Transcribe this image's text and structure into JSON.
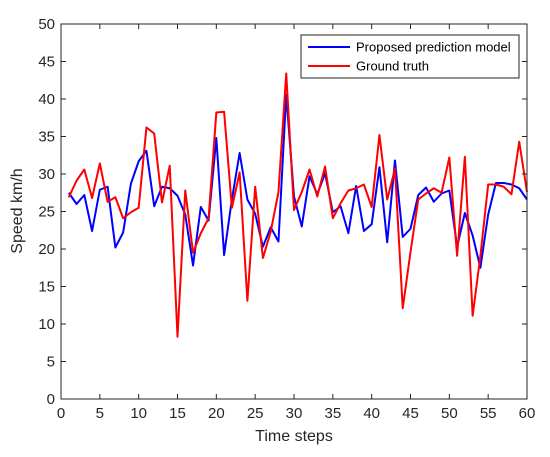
{
  "chart_data": {
    "type": "line",
    "title": "",
    "xlabel": "Time steps",
    "ylabel": "Speed km/h",
    "xlim": [
      0,
      60
    ],
    "ylim": [
      0,
      50
    ],
    "xticks": [
      0,
      5,
      10,
      15,
      20,
      25,
      30,
      35,
      40,
      45,
      50,
      55,
      60
    ],
    "yticks": [
      0,
      5,
      10,
      15,
      20,
      25,
      30,
      35,
      40,
      45,
      50
    ],
    "grid": false,
    "legend_position": "top-right",
    "x": [
      1,
      2,
      3,
      4,
      5,
      6,
      7,
      8,
      9,
      10,
      11,
      12,
      13,
      14,
      15,
      16,
      17,
      18,
      19,
      20,
      21,
      22,
      23,
      24,
      25,
      26,
      27,
      28,
      29,
      30,
      31,
      32,
      33,
      34,
      35,
      36,
      37,
      38,
      39,
      40,
      41,
      42,
      43,
      44,
      45,
      46,
      47,
      48,
      49,
      50,
      51,
      52,
      53,
      54,
      55,
      56,
      57,
      58,
      59,
      60
    ],
    "series": [
      {
        "name": "Proposed prediction model",
        "color": "#0000ff",
        "values": [
          27.5,
          26,
          27.2,
          22.4,
          27.9,
          28.3,
          20.2,
          22.2,
          28.7,
          31.7,
          33.1,
          25.7,
          28.3,
          28.1,
          27.1,
          24.6,
          17.8,
          25.6,
          23.8,
          34.8,
          19.2,
          26.6,
          32.8,
          26.6,
          24.7,
          20.3,
          22.9,
          21.0,
          40.6,
          27.0,
          23.0,
          29.7,
          27.3,
          30.1,
          24.9,
          25.7,
          22.1,
          28.4,
          22.4,
          23.3,
          30.9,
          20.9,
          31.8,
          21.6,
          22.7,
          27.2,
          28.2,
          26.3,
          27.4,
          27.8,
          20.3,
          24.8,
          21.8,
          17.5,
          24.6,
          28.8,
          28.8,
          28.6,
          28.1,
          26.6
        ]
      },
      {
        "name": "Ground truth",
        "color": "#ff0000",
        "values": [
          26.9,
          29.1,
          30.6,
          26.8,
          31.4,
          26.3,
          26.9,
          24.1,
          24.9,
          25.5,
          36.2,
          35.4,
          26.2,
          31.1,
          8.3,
          27.8,
          19.5,
          22.1,
          24.1,
          38.2,
          38.3,
          25.5,
          30.2,
          13.1,
          28.3,
          18.8,
          22.3,
          27.6,
          43.4,
          25.2,
          27.6,
          30.6,
          27.0,
          31.0,
          24.1,
          26.1,
          27.8,
          28.1,
          28.6,
          25.6,
          35.2,
          26.6,
          30.7,
          12.1,
          19.6,
          26.6,
          27.4,
          28.1,
          27.5,
          32.2,
          19.1,
          32.3,
          11.1,
          19.1,
          28.6,
          28.6,
          28.3,
          27.3,
          34.3,
          27.6
        ]
      }
    ]
  }
}
